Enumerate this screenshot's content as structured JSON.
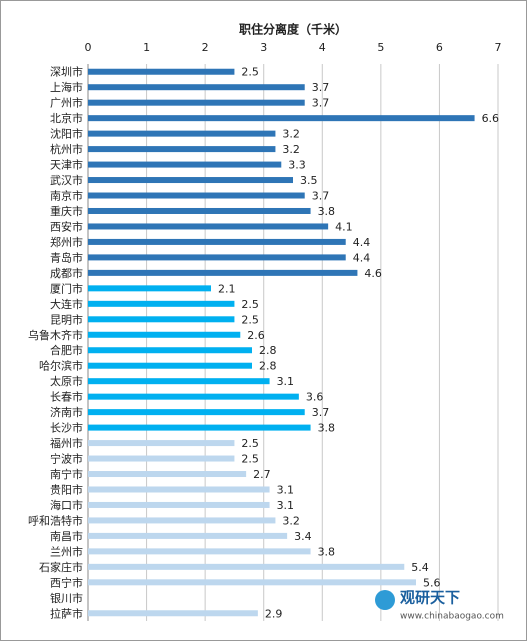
{
  "chart_data": {
    "type": "hbar",
    "title": "职住分离度（千米）",
    "categories": [
      "深圳市",
      "上海市",
      "广州市",
      "北京市",
      "沈阳市",
      "杭州市",
      "天津市",
      "武汉市",
      "南京市",
      "重庆市",
      "西安市",
      "郑州市",
      "青岛市",
      "成都市",
      "厦门市",
      "大连市",
      "昆明市",
      "乌鲁木齐市",
      "合肥市",
      "哈尔滨市",
      "太原市",
      "长春市",
      "济南市",
      "长沙市",
      "福州市",
      "宁波市",
      "南宁市",
      "贵阳市",
      "海口市",
      "呼和浩特市",
      "南昌市",
      "兰州市",
      "石家庄市",
      "西宁市",
      "银川市",
      "拉萨市"
    ],
    "values": [
      2.5,
      3.7,
      3.7,
      6.6,
      3.2,
      3.2,
      3.3,
      3.5,
      3.7,
      3.8,
      4.1,
      4.4,
      4.4,
      4.6,
      2.1,
      2.5,
      2.5,
      2.6,
      2.8,
      2.8,
      3.1,
      3.6,
      3.7,
      3.8,
      2.5,
      2.5,
      2.7,
      3.1,
      3.1,
      3.2,
      3.4,
      3.8,
      5.4,
      5.6,
      null,
      2.9
    ],
    "colors": [
      "#2e75b6",
      "#2e75b6",
      "#2e75b6",
      "#2e75b6",
      "#2e75b6",
      "#2e75b6",
      "#2e75b6",
      "#2e75b6",
      "#2e75b6",
      "#2e75b6",
      "#2e75b6",
      "#2e75b6",
      "#2e75b6",
      "#2e75b6",
      "#00b0f0",
      "#00b0f0",
      "#00b0f0",
      "#00b0f0",
      "#00b0f0",
      "#00b0f0",
      "#00b0f0",
      "#00b0f0",
      "#00b0f0",
      "#00b0f0",
      "#bdd7ee",
      "#bdd7ee",
      "#bdd7ee",
      "#bdd7ee",
      "#bdd7ee",
      "#bdd7ee",
      "#bdd7ee",
      "#bdd7ee",
      "#bdd7ee",
      "#bdd7ee",
      "#bdd7ee",
      "#bdd7ee"
    ],
    "xlim": [
      0,
      7
    ],
    "xticks": [
      0,
      1,
      2,
      3,
      4,
      5,
      6,
      7
    ],
    "grid": true
  },
  "watermark": {
    "name": "观研天下",
    "url": "www.chinabaogao.com"
  }
}
